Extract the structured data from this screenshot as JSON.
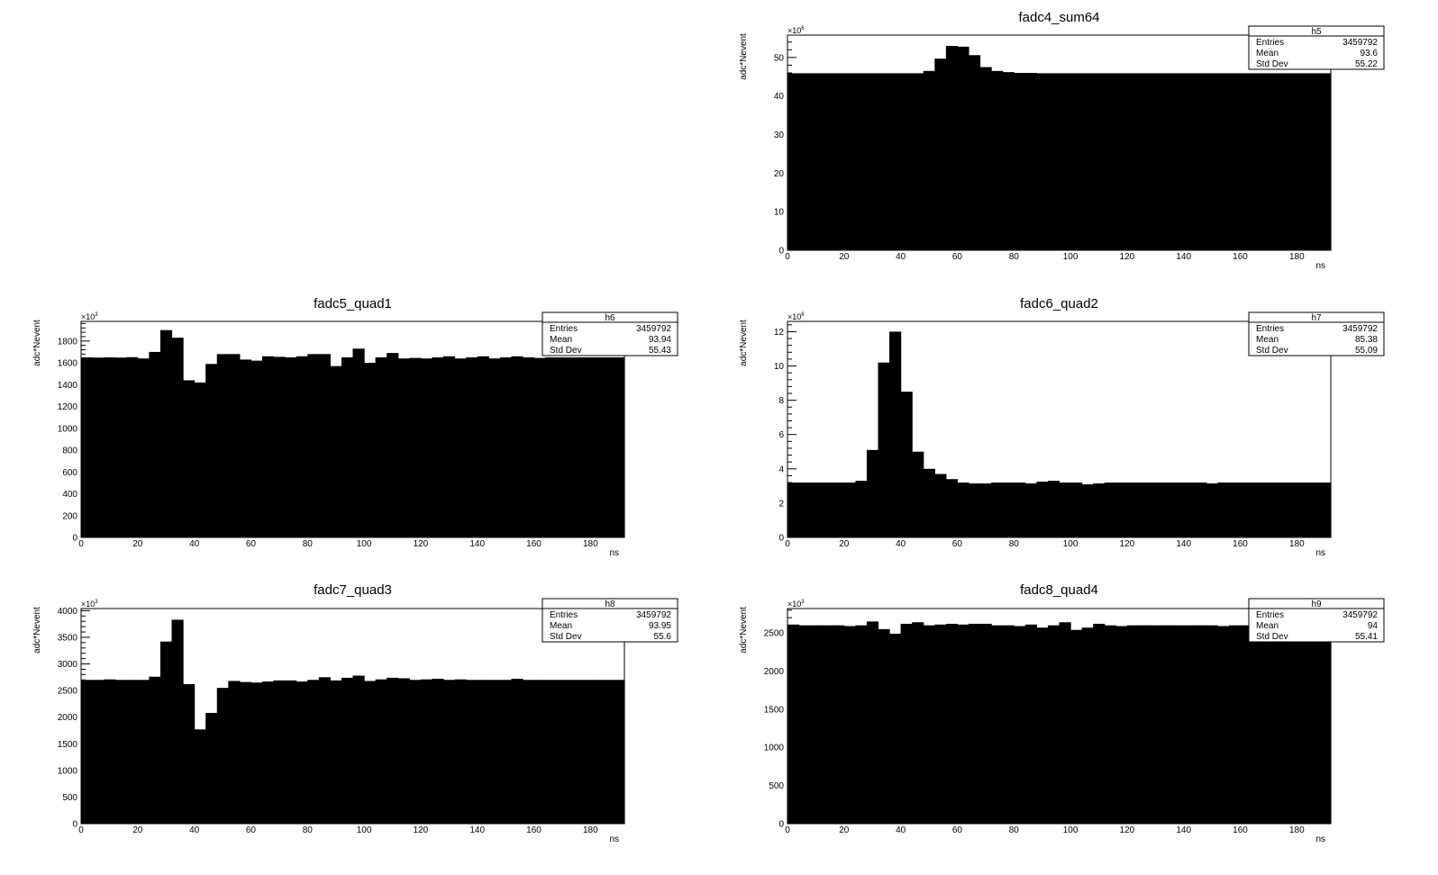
{
  "window": {
    "canvas": "white"
  },
  "chart_data": [
    {
      "id": "h5",
      "type": "bar",
      "title": "fadc4_sum64",
      "xlabel": "ns",
      "ylabel": "adc*Nevent",
      "y_multiplier_label": "×10",
      "y_multiplier_exp": "6",
      "xlim": [
        0,
        192
      ],
      "ylim": [
        0,
        55.8
      ],
      "x_ticks": [
        0,
        20,
        40,
        60,
        80,
        100,
        120,
        140,
        160,
        180
      ],
      "y_ticks": [
        0,
        10,
        20,
        30,
        40,
        50
      ],
      "bin_width": 4,
      "values": [
        45.9,
        45.9,
        45.9,
        45.9,
        45.9,
        45.9,
        45.9,
        45.9,
        45.9,
        45.9,
        45.9,
        45.9,
        46.5,
        49.7,
        53.0,
        52.8,
        50.6,
        47.5,
        46.5,
        46.2,
        46.0,
        46.0,
        45.9,
        45.9,
        45.9,
        45.9,
        45.9,
        45.9,
        45.9,
        45.9,
        45.9,
        45.9,
        45.9,
        45.9,
        45.9,
        45.9,
        45.9,
        45.9,
        45.9,
        45.9,
        45.9,
        45.9,
        45.9,
        45.9,
        45.9,
        45.9,
        45.9,
        45.9
      ],
      "stats": {
        "name": "h5",
        "rows": [
          {
            "label": "Entries",
            "value": "3459792"
          },
          {
            "label": "Mean",
            "value": "93.6"
          },
          {
            "label": "Std Dev",
            "value": "55.22"
          }
        ]
      }
    },
    {
      "id": "h6",
      "type": "bar",
      "title": "fadc5_quad1",
      "xlabel": "ns",
      "ylabel": "adc*Nevent",
      "y_multiplier_label": "×10",
      "y_multiplier_exp": "3",
      "xlim": [
        0,
        192
      ],
      "ylim": [
        0,
        1980
      ],
      "x_ticks": [
        0,
        20,
        40,
        60,
        80,
        100,
        120,
        140,
        160,
        180
      ],
      "y_ticks": [
        0,
        200,
        400,
        600,
        800,
        1000,
        1200,
        1400,
        1600,
        1800
      ],
      "bin_width": 4,
      "values": [
        1650,
        1648,
        1650,
        1648,
        1652,
        1640,
        1700,
        1900,
        1830,
        1440,
        1420,
        1590,
        1680,
        1680,
        1630,
        1620,
        1660,
        1655,
        1650,
        1660,
        1680,
        1680,
        1570,
        1650,
        1730,
        1600,
        1650,
        1690,
        1640,
        1645,
        1640,
        1650,
        1660,
        1640,
        1650,
        1660,
        1640,
        1650,
        1660,
        1650,
        1645,
        1650,
        1650,
        1650,
        1650,
        1650,
        1650,
        1650
      ],
      "stats": {
        "name": "h6",
        "rows": [
          {
            "label": "Entries",
            "value": "3459792"
          },
          {
            "label": "Mean",
            "value": "93.94"
          },
          {
            "label": "Std Dev",
            "value": "55.43"
          }
        ]
      }
    },
    {
      "id": "h7",
      "type": "bar",
      "title": "fadc6_quad2",
      "xlabel": "ns",
      "ylabel": "adc*Nevent",
      "y_multiplier_label": "×10",
      "y_multiplier_exp": "6",
      "xlim": [
        0,
        192
      ],
      "ylim": [
        0,
        12.6
      ],
      "x_ticks": [
        0,
        20,
        40,
        60,
        80,
        100,
        120,
        140,
        160,
        180
      ],
      "y_ticks": [
        0,
        2,
        4,
        6,
        8,
        10,
        12
      ],
      "bin_width": 4,
      "values": [
        3.2,
        3.2,
        3.2,
        3.2,
        3.2,
        3.2,
        3.3,
        5.1,
        10.2,
        12.0,
        8.5,
        5.0,
        4.0,
        3.7,
        3.4,
        3.2,
        3.15,
        3.15,
        3.2,
        3.2,
        3.2,
        3.15,
        3.25,
        3.3,
        3.2,
        3.2,
        3.1,
        3.15,
        3.2,
        3.2,
        3.2,
        3.2,
        3.2,
        3.2,
        3.2,
        3.2,
        3.2,
        3.15,
        3.2,
        3.2,
        3.2,
        3.2,
        3.2,
        3.2,
        3.2,
        3.2,
        3.2,
        3.2
      ],
      "stats": {
        "name": "h7",
        "rows": [
          {
            "label": "Entries",
            "value": "3459792"
          },
          {
            "label": "Mean",
            "value": "85.38"
          },
          {
            "label": "Std Dev",
            "value": "55.09"
          }
        ]
      }
    },
    {
      "id": "h8",
      "type": "bar",
      "title": "fadc7_quad3",
      "xlabel": "ns",
      "ylabel": "adc*Nevent",
      "y_multiplier_label": "×10",
      "y_multiplier_exp": "3",
      "xlim": [
        0,
        192
      ],
      "ylim": [
        0,
        4040
      ],
      "x_ticks": [
        0,
        20,
        40,
        60,
        80,
        100,
        120,
        140,
        160,
        180
      ],
      "y_ticks": [
        0,
        500,
        1000,
        1500,
        2000,
        2500,
        3000,
        3500,
        4000
      ],
      "bin_width": 4,
      "values": [
        2700,
        2700,
        2710,
        2700,
        2700,
        2700,
        2760,
        3420,
        3830,
        2620,
        1770,
        2080,
        2550,
        2680,
        2660,
        2650,
        2670,
        2690,
        2690,
        2670,
        2700,
        2750,
        2690,
        2740,
        2780,
        2680,
        2710,
        2740,
        2730,
        2700,
        2710,
        2720,
        2700,
        2710,
        2700,
        2700,
        2700,
        2700,
        2720,
        2700,
        2700,
        2700,
        2700,
        2700,
        2700,
        2700,
        2700,
        2700
      ],
      "stats": {
        "name": "h8",
        "rows": [
          {
            "label": "Entries",
            "value": "3459792"
          },
          {
            "label": "Mean",
            "value": "93.95"
          },
          {
            "label": "Std Dev",
            "value": "55.6"
          }
        ]
      }
    },
    {
      "id": "h9",
      "type": "bar",
      "title": "fadc8_quad4",
      "xlabel": "ns",
      "ylabel": "adc*Nevent",
      "y_multiplier_label": "×10",
      "y_multiplier_exp": "3",
      "xlim": [
        0,
        192
      ],
      "ylim": [
        0,
        2820
      ],
      "x_ticks": [
        0,
        20,
        40,
        60,
        80,
        100,
        120,
        140,
        160,
        180
      ],
      "y_ticks": [
        0,
        500,
        1000,
        1500,
        2000,
        2500
      ],
      "bin_width": 4,
      "values": [
        2610,
        2600,
        2600,
        2600,
        2600,
        2590,
        2600,
        2650,
        2550,
        2490,
        2620,
        2640,
        2600,
        2610,
        2620,
        2610,
        2620,
        2620,
        2600,
        2600,
        2590,
        2610,
        2570,
        2600,
        2640,
        2540,
        2570,
        2620,
        2600,
        2590,
        2600,
        2600,
        2600,
        2600,
        2600,
        2600,
        2600,
        2600,
        2590,
        2600,
        2600,
        2600,
        2600,
        2600,
        2600,
        2600,
        2600,
        2600
      ],
      "stats": {
        "name": "h9",
        "rows": [
          {
            "label": "Entries",
            "value": "3459792"
          },
          {
            "label": "Mean",
            "value": "94"
          },
          {
            "label": "Std Dev",
            "value": "55.41"
          }
        ]
      }
    }
  ]
}
